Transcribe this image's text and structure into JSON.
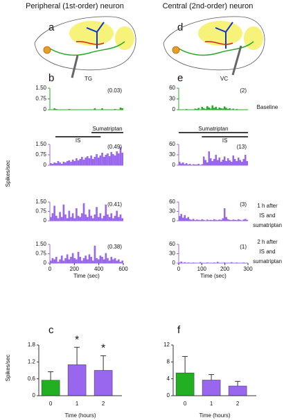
{
  "columns": [
    "Peripheral (1st-order) neuron",
    "Central (2nd-order) neuron"
  ],
  "panel_labels": [
    "a",
    "b",
    "c",
    "d",
    "e",
    "f"
  ],
  "diagram_labels": [
    "TG",
    "VC"
  ],
  "row_labels": [
    [
      "Baseline"
    ],
    [
      "1 h after",
      "IS and",
      "sumatriptan"
    ],
    [
      "2 h after",
      "IS and",
      "sumatriptan"
    ]
  ],
  "chart_data": [
    {
      "type": "histogram",
      "color": "#22b022",
      "annotation": "(0.03)",
      "bins": [
        0,
        15,
        30,
        45,
        60,
        75,
        90,
        105,
        120,
        135,
        150,
        165,
        180,
        195,
        210,
        225,
        240,
        255,
        270,
        285,
        300,
        315,
        330,
        345,
        360,
        375,
        390,
        405,
        420,
        435,
        450,
        465,
        480,
        495,
        510,
        525,
        540,
        555,
        570,
        585,
        600
      ],
      "values": [
        0,
        0,
        0.1,
        0.05,
        0,
        0,
        0,
        0,
        0,
        0,
        0.05,
        0,
        0,
        0,
        0,
        0,
        0,
        0,
        0,
        0,
        0,
        0,
        0,
        0,
        0.1,
        0,
        0,
        0,
        0.1,
        0,
        0,
        0,
        0,
        0,
        0,
        0.05,
        0,
        0,
        0.15,
        0.1
      ],
      "xlim": [
        0,
        600
      ],
      "ylim": [
        0,
        1.5
      ],
      "yticks": [
        0,
        {
          "value": 0.75,
          "label": "0.75"
        },
        {
          "value": 1.5,
          "label": "1.50"
        }
      ]
    },
    {
      "type": "histogram",
      "color": "#9966ee",
      "annotation": "(0.49)",
      "ylabel": "Spikes/sec",
      "intervals": [
        {
          "label": "Sumatriptan",
          "x": [
            340,
            600
          ]
        },
        {
          "label": "IS",
          "x": [
            45,
            415
          ]
        }
      ],
      "bins": [
        0,
        15,
        30,
        45,
        60,
        75,
        90,
        105,
        120,
        135,
        150,
        165,
        180,
        195,
        210,
        225,
        240,
        255,
        270,
        285,
        300,
        315,
        330,
        345,
        360,
        375,
        390,
        405,
        420,
        435,
        450,
        465,
        480,
        495,
        510,
        525,
        540,
        555,
        570,
        585,
        600
      ],
      "values": [
        0.15,
        0.1,
        0.2,
        0.15,
        0.3,
        0.2,
        0.1,
        0.25,
        0.2,
        0.3,
        0.35,
        0.25,
        0.4,
        0.3,
        0.5,
        0.35,
        0.45,
        0.6,
        0.4,
        0.55,
        0.65,
        0.5,
        0.7,
        0.45,
        0.6,
        0.8,
        0.55,
        0.7,
        0.9,
        0.6,
        0.75,
        0.85,
        0.65,
        0.95,
        0.8,
        0.7,
        1.0,
        0.85,
        1.3,
        0.9
      ],
      "xlim": [
        0,
        600
      ],
      "ylim": [
        0,
        1.5
      ],
      "yticks": [
        0,
        {
          "value": 0.75,
          "label": "0.75"
        },
        {
          "value": 1.5,
          "label": "1.50"
        }
      ]
    },
    {
      "type": "histogram",
      "color": "#9966ee",
      "annotation": "(0.41)",
      "bins": [
        0,
        15,
        30,
        45,
        60,
        75,
        90,
        105,
        120,
        135,
        150,
        165,
        180,
        195,
        210,
        225,
        240,
        255,
        270,
        285,
        300,
        315,
        330,
        345,
        360,
        375,
        390,
        405,
        420,
        435,
        450,
        465,
        480,
        495,
        510,
        525,
        540,
        555,
        570,
        585,
        600
      ],
      "values": [
        0.3,
        0.6,
        1.2,
        0.4,
        0.2,
        0.7,
        0.3,
        1.3,
        0.5,
        0.2,
        0.8,
        0.3,
        0.6,
        0.2,
        1.0,
        0.4,
        0.3,
        0.6,
        1.4,
        0.5,
        0.3,
        0.9,
        0.4,
        0.2,
        0.5,
        1.1,
        0.3,
        0.6,
        0.2,
        0.4,
        1.3,
        0.5,
        0.3,
        0.6,
        0.2,
        0.4,
        0.8,
        0.3,
        0.5,
        0.2
      ],
      "xlim": [
        0,
        600
      ],
      "ylim": [
        0,
        1.5
      ],
      "yticks": [
        0,
        {
          "value": 0.75,
          "label": "0.75"
        },
        {
          "value": 1.5,
          "label": "1.50"
        }
      ]
    },
    {
      "type": "histogram",
      "color": "#9966ee",
      "annotation": "(0.38)",
      "xlabel": "Time (sec)",
      "xticks": [
        0,
        200,
        400,
        600
      ],
      "bins": [
        0,
        15,
        30,
        45,
        60,
        75,
        90,
        105,
        120,
        135,
        150,
        165,
        180,
        195,
        210,
        225,
        240,
        255,
        270,
        285,
        300,
        315,
        330,
        345,
        360,
        375,
        390,
        405,
        420,
        435,
        450,
        465,
        480,
        495,
        510,
        525,
        540,
        555,
        570,
        585,
        600
      ],
      "values": [
        0.2,
        0.4,
        0.3,
        0.5,
        0.1,
        0.3,
        0.6,
        0.2,
        0.4,
        0.7,
        0.3,
        0.5,
        0.8,
        0.4,
        0.3,
        0.9,
        0.5,
        0.2,
        0.4,
        0.6,
        0.3,
        0.7,
        0.5,
        0.2,
        1.4,
        0.4,
        0.3,
        0.6,
        0.5,
        0.3,
        0.8,
        0.4,
        0.2,
        0.5,
        0.3,
        0.4,
        0.2,
        0.3,
        0.1,
        0.2
      ],
      "xlim": [
        0,
        600
      ],
      "ylim": [
        0,
        1.5
      ],
      "yticks": [
        0,
        {
          "value": 0.75,
          "label": "0.75"
        },
        {
          "value": 1.5,
          "label": "1.50"
        }
      ]
    },
    {
      "type": "histogram",
      "color": "#22b022",
      "annotation": "(2)",
      "bins": [
        0,
        7.5,
        15,
        22.5,
        30,
        37.5,
        45,
        52.5,
        60,
        67.5,
        75,
        82.5,
        90,
        97.5,
        105,
        112.5,
        120,
        127.5,
        135,
        142.5,
        150,
        157.5,
        165,
        172.5,
        180,
        187.5,
        195,
        202.5,
        210,
        217.5,
        225,
        232.5,
        240,
        247.5,
        255,
        262.5,
        270,
        277.5,
        285,
        292.5,
        300
      ],
      "values": [
        0,
        0,
        1,
        0,
        2,
        0,
        0,
        1,
        0,
        3,
        2,
        5,
        1,
        8,
        4,
        2,
        10,
        6,
        3,
        12,
        5,
        8,
        2,
        6,
        4,
        3,
        9,
        5,
        2,
        4,
        1,
        3,
        0,
        2,
        1,
        0,
        1,
        0,
        1,
        0
      ],
      "xlim": [
        0,
        300
      ],
      "ylim": [
        0,
        60
      ],
      "yticks": [
        0,
        30,
        60
      ]
    },
    {
      "type": "histogram",
      "color": "#9966ee",
      "annotation": "(13)",
      "intervals": [
        {
          "label": "Sumatriptan",
          "x": [
            0,
            300
          ]
        },
        {
          "label": "IS",
          "x": [
            100,
            300
          ]
        }
      ],
      "bins": [
        0,
        7.5,
        15,
        22.5,
        30,
        37.5,
        45,
        52.5,
        60,
        67.5,
        75,
        82.5,
        90,
        97.5,
        105,
        112.5,
        120,
        127.5,
        135,
        142.5,
        150,
        157.5,
        165,
        172.5,
        180,
        187.5,
        195,
        202.5,
        210,
        217.5,
        225,
        232.5,
        240,
        247.5,
        255,
        262.5,
        270,
        277.5,
        285,
        292.5,
        300
      ],
      "values": [
        10,
        5,
        8,
        3,
        6,
        2,
        4,
        1,
        3,
        2,
        2,
        4,
        1,
        3,
        25,
        15,
        8,
        40,
        20,
        12,
        18,
        30,
        15,
        22,
        10,
        16,
        25,
        12,
        20,
        14,
        10,
        28,
        18,
        12,
        22,
        15,
        10,
        18,
        30,
        12
      ],
      "xlim": [
        0,
        300
      ],
      "ylim": [
        0,
        60
      ],
      "yticks": [
        0,
        30,
        60
      ]
    },
    {
      "type": "histogram",
      "color": "#9966ee",
      "annotation": "(3)",
      "bins": [
        0,
        7.5,
        15,
        22.5,
        30,
        37.5,
        45,
        52.5,
        60,
        67.5,
        75,
        82.5,
        90,
        97.5,
        105,
        112.5,
        120,
        127.5,
        135,
        142.5,
        150,
        157.5,
        165,
        172.5,
        180,
        187.5,
        195,
        202.5,
        210,
        217.5,
        225,
        232.5,
        240,
        247.5,
        255,
        262.5,
        270,
        277.5,
        285,
        292.5,
        300
      ],
      "values": [
        15,
        22,
        10,
        18,
        8,
        12,
        5,
        3,
        6,
        2,
        4,
        3,
        2,
        5,
        3,
        1,
        4,
        2,
        3,
        2,
        5,
        3,
        2,
        4,
        3,
        8,
        40,
        12,
        5,
        3,
        2,
        4,
        3,
        2,
        5,
        3,
        1,
        4,
        6,
        3
      ],
      "xlim": [
        0,
        300
      ],
      "ylim": [
        0,
        60
      ],
      "yticks": [
        0,
        30,
        60
      ]
    },
    {
      "type": "histogram",
      "color": "#9966ee",
      "annotation": "(1)",
      "xlabel": "Time (sec)",
      "xticks": [
        0,
        100,
        200,
        300
      ],
      "bins": [
        0,
        7.5,
        15,
        22.5,
        30,
        37.5,
        45,
        52.5,
        60,
        67.5,
        75,
        82.5,
        90,
        97.5,
        105,
        112.5,
        120,
        127.5,
        135,
        142.5,
        150,
        157.5,
        165,
        172.5,
        180,
        187.5,
        195,
        202.5,
        210,
        217.5,
        225,
        232.5,
        240,
        247.5,
        255,
        262.5,
        270,
        277.5,
        285,
        292.5,
        300
      ],
      "values": [
        2,
        5,
        1,
        3,
        1,
        2,
        0,
        1,
        2,
        1,
        0,
        1,
        3,
        1,
        0,
        1,
        2,
        1,
        1,
        0,
        2,
        1,
        4,
        1,
        0,
        1,
        2,
        0,
        1,
        1,
        3,
        1,
        0,
        2,
        1,
        0,
        1,
        2,
        1,
        0
      ],
      "xlim": [
        0,
        300
      ],
      "ylim": [
        0,
        60
      ],
      "yticks": [
        0,
        30,
        60
      ]
    },
    {
      "type": "bar",
      "categories": [
        "0",
        "1",
        "2"
      ],
      "values": [
        0.55,
        1.1,
        0.9
      ],
      "errors": [
        0.3,
        0.62,
        0.52
      ],
      "colors": [
        "#22b022",
        "#9966ee",
        "#9966ee"
      ],
      "annotations": [
        {
          "text": "*",
          "x": "1"
        },
        {
          "text": "*",
          "x": "2"
        }
      ],
      "ylabel": "Spikes/sec",
      "xlabel": "Time (hours)",
      "ylim": [
        0,
        1.8
      ],
      "yticks": [
        0,
        0.6,
        1.2,
        1.8
      ]
    },
    {
      "type": "bar",
      "categories": [
        "0",
        "1",
        "2"
      ],
      "values": [
        5.4,
        3.7,
        2.3
      ],
      "errors": [
        3.9,
        1.3,
        1.1
      ],
      "colors": [
        "#22b022",
        "#9966ee",
        "#9966ee"
      ],
      "xlabel": "Time (hours)",
      "ylim": [
        0,
        12
      ],
      "yticks": [
        0,
        4,
        8,
        12
      ]
    }
  ]
}
